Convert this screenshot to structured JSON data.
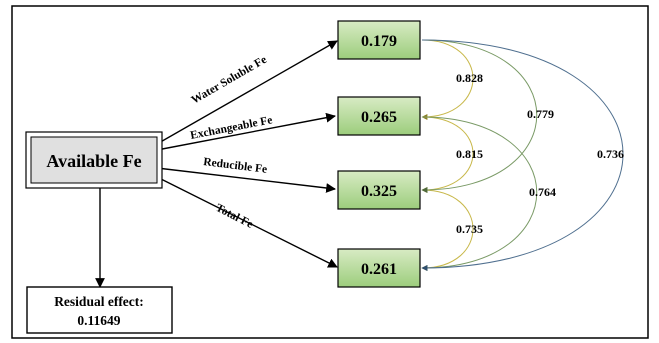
{
  "source": {
    "label": "Available Fe",
    "fill": "#e0e0e0"
  },
  "paths": [
    {
      "label": "Water Soluble Fe",
      "value": "0.179"
    },
    {
      "label": "Exchangeable Fe",
      "value": "0.265"
    },
    {
      "label": "Reducible Fe",
      "value": "0.325"
    },
    {
      "label": "Total Fe",
      "value": "0.261"
    }
  ],
  "residual": {
    "line1": "Residual effect:",
    "line2": "0.11649"
  },
  "correlations": [
    {
      "pair": "1-2",
      "value": "0.828",
      "color": "#c8b84a"
    },
    {
      "pair": "2-3",
      "value": "0.815",
      "color": "#c8b84a"
    },
    {
      "pair": "3-4",
      "value": "0.735",
      "color": "#c8b84a"
    },
    {
      "pair": "1-3",
      "value": "0.779",
      "color": "#7a9a66"
    },
    {
      "pair": "2-4",
      "value": "0.764",
      "color": "#7a9a66"
    },
    {
      "pair": "1-4",
      "value": "0.736",
      "color": "#4f6f8f"
    }
  ],
  "colors": {
    "box_fill_top": "#d8ebc4",
    "box_fill_bottom": "#9ccd7c",
    "frame": "#000000"
  }
}
